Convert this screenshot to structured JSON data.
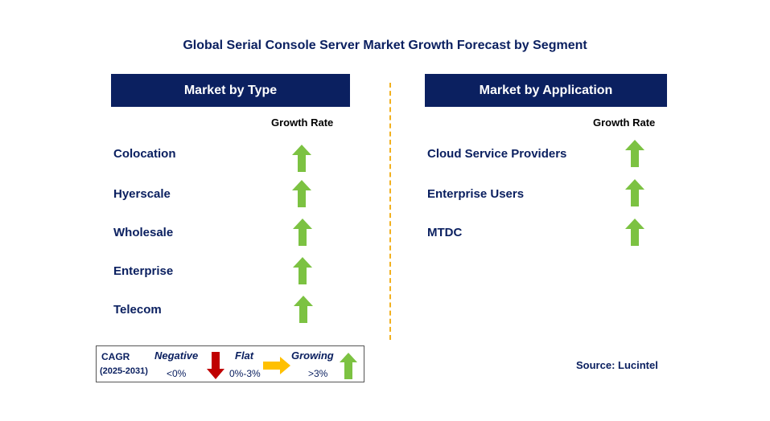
{
  "title": "Global Serial Console Server Market Growth Forecast by Segment",
  "left_panel": {
    "header": "Market by Type",
    "growth_rate_label": "Growth Rate",
    "items": [
      {
        "label": "Colocation",
        "trend": "growing"
      },
      {
        "label": "Hyerscale",
        "trend": "growing"
      },
      {
        "label": "Wholesale",
        "trend": "growing"
      },
      {
        "label": "Enterprise",
        "trend": "growing"
      },
      {
        "label": "Telecom",
        "trend": "growing"
      }
    ]
  },
  "right_panel": {
    "header": "Market by Application",
    "growth_rate_label": "Growth Rate",
    "items": [
      {
        "label": "Cloud Service Providers",
        "trend": "growing"
      },
      {
        "label": "Enterprise Users",
        "trend": "growing"
      },
      {
        "label": "MTDC",
        "trend": "growing"
      }
    ]
  },
  "legend": {
    "cagr": "CAGR",
    "period": "(2025-2031)",
    "negative": {
      "label": "Negative",
      "range": "<0%",
      "color": "#c00000"
    },
    "flat": {
      "label": "Flat",
      "range": "0%-3%",
      "color": "#ffc000"
    },
    "growing": {
      "label": "Growing",
      "range": ">3%",
      "color": "#7cc242"
    }
  },
  "source": "Source: Lucintel",
  "colors": {
    "navy": "#0b2060",
    "green_arrow": "#7cc242",
    "divider": "#f2b01e"
  }
}
